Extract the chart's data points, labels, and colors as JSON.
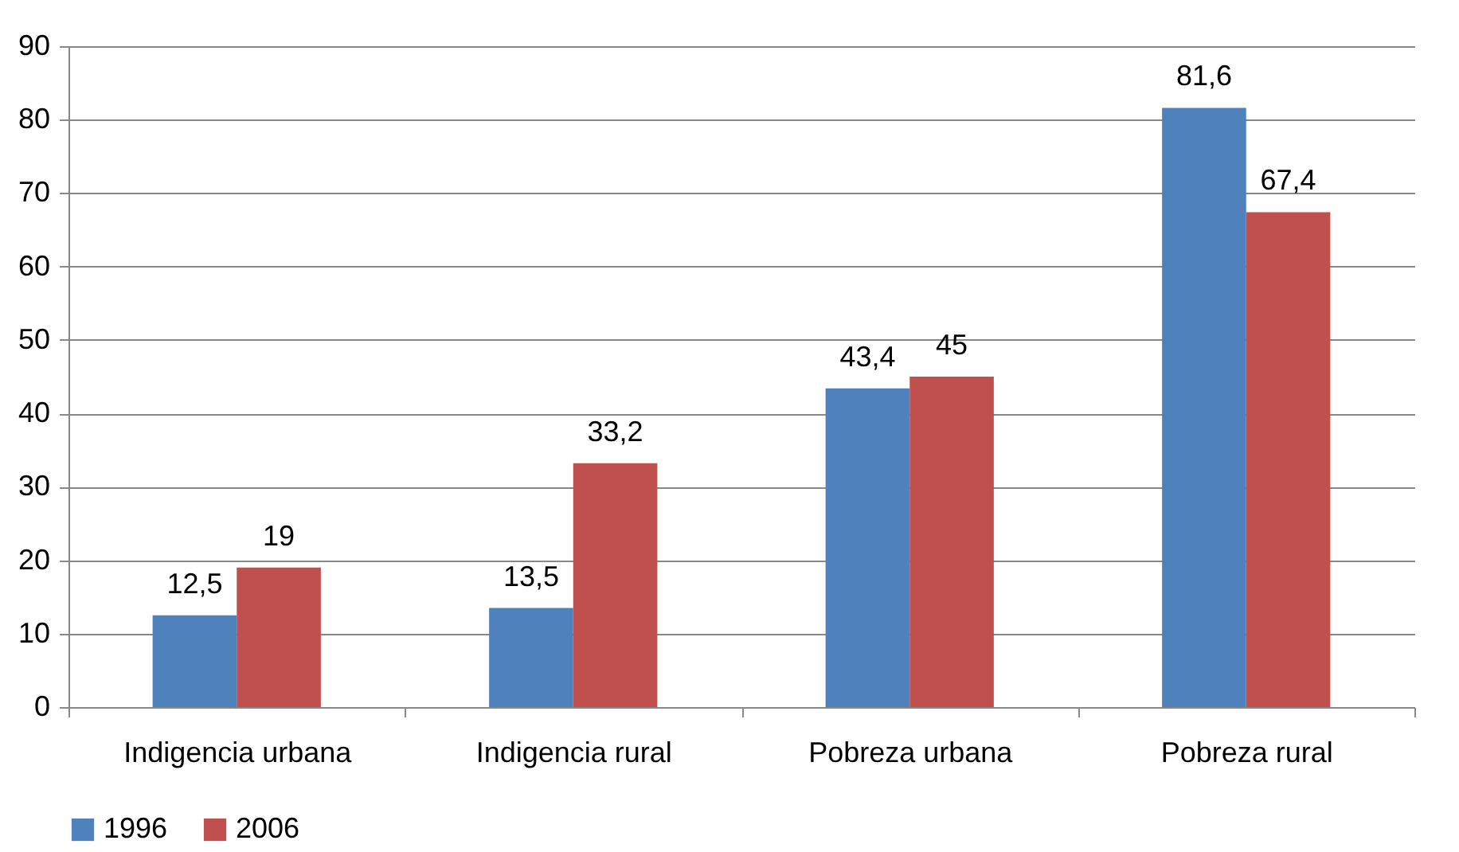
{
  "chart_data": {
    "type": "bar",
    "categories": [
      "Indigencia urbana",
      "Indigencia rural",
      "Pobreza urbana",
      "Pobreza rural"
    ],
    "series": [
      {
        "name": "1996",
        "color": "#4f81bd",
        "values": [
          12.5,
          13.5,
          43.4,
          81.6
        ],
        "value_labels": [
          "12,5",
          "13,5",
          "43,4",
          "81,6"
        ]
      },
      {
        "name": "2006",
        "color": "#c0504d",
        "values": [
          19,
          33.2,
          45,
          67.4
        ],
        "value_labels": [
          "19",
          "33,2",
          "45",
          "67,4"
        ]
      }
    ],
    "ylim": [
      0,
      90
    ],
    "yticks": [
      0,
      10,
      20,
      30,
      40,
      50,
      60,
      70,
      80,
      90
    ],
    "grid": "y",
    "legend": "bottom"
  }
}
